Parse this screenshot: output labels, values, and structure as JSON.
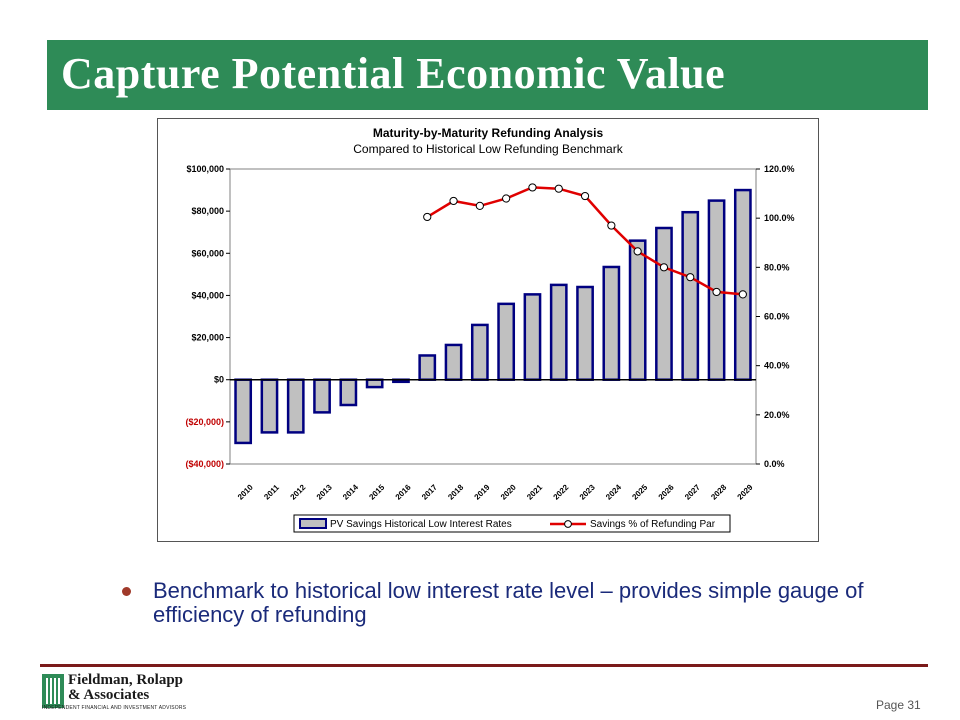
{
  "slide": {
    "title": "Capture Potential Economic Value",
    "bullet": "Benchmark to historical low interest rate level – provides simple gauge of efficiency of refunding",
    "page_label": "Page 31",
    "colors": {
      "title_bar": "#2e8b57",
      "footer_line": "#7a1a1a",
      "bullet_text": "#1a2a7a"
    }
  },
  "logo": {
    "line1": "Fieldman, Rolapp",
    "line2": "& Associates",
    "tagline": "INDEPENDENT FINANCIAL AND INVESTMENT ADVISORS"
  },
  "chart_data": {
    "type": "bar",
    "title": "Maturity-by-Maturity Refunding Analysis",
    "subtitle": "Compared to Historical Low Refunding Benchmark",
    "categories": [
      "2010",
      "2011",
      "2012",
      "2013",
      "2014",
      "2015",
      "2016",
      "2017",
      "2018",
      "2019",
      "2020",
      "2021",
      "2022",
      "2023",
      "2024",
      "2025",
      "2026",
      "2027",
      "2028",
      "2029"
    ],
    "y_left": {
      "min": -40000,
      "max": 100000,
      "ticks": [
        -40000,
        -20000,
        0,
        20000,
        40000,
        60000,
        80000,
        100000
      ],
      "tick_labels": [
        "($40,000)",
        "($20,000)",
        "$0",
        "$20,000",
        "$40,000",
        "$60,000",
        "$80,000",
        "$100,000"
      ]
    },
    "y_right": {
      "min": 0,
      "max": 120,
      "ticks": [
        0,
        20,
        40,
        60,
        80,
        100,
        120
      ],
      "tick_labels": [
        "0.0%",
        "20.0%",
        "40.0%",
        "60.0%",
        "80.0%",
        "100.0%",
        "120.0%"
      ]
    },
    "series": [
      {
        "name": "PV Savings Historical Low Interest Rates",
        "kind": "bar",
        "axis": "left",
        "color": "#c0c0c0",
        "values": [
          -30000,
          -25000,
          -25000,
          -15500,
          -12000,
          -3500,
          -1000,
          11500,
          16500,
          26000,
          36000,
          40500,
          45000,
          44000,
          53500,
          66000,
          72000,
          79500,
          85000,
          90000
        ]
      },
      {
        "name": "Savings % of Refunding Par",
        "kind": "line",
        "axis": "right",
        "color": "#e00000",
        "values": [
          null,
          null,
          null,
          null,
          null,
          null,
          null,
          100.5,
          107,
          105,
          108,
          112.5,
          112,
          109,
          97,
          86.5,
          80,
          76,
          70,
          69
        ]
      }
    ],
    "grid": false,
    "legend_position": "bottom"
  }
}
